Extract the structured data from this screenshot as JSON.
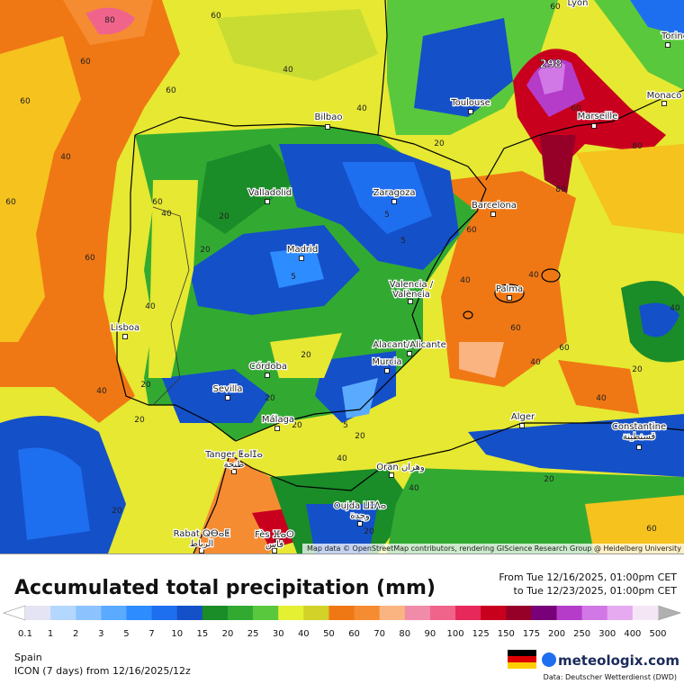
{
  "map": {
    "peak_label": "298",
    "attribution": "Map data © OpenStreetMap contributors, rendering GIScience Research Group @ Heidelberg University",
    "cities": [
      [
        "Lyon"
      ],
      [
        "Torino"
      ],
      [
        "Monaco"
      ],
      [
        "Marseille"
      ],
      [
        "Toulouse"
      ],
      [
        "Bilbao"
      ],
      [
        "Valladolid"
      ],
      [
        "Zaragoza"
      ],
      [
        "Barcelona"
      ],
      [
        "Madrid"
      ],
      [
        "Valencia /",
        "València"
      ],
      [
        "Palma"
      ],
      [
        "Lisboa"
      ],
      [
        "Córdoba"
      ],
      [
        "Sevilla"
      ],
      [
        "Alacant/Alicante"
      ],
      [
        "Murcia"
      ],
      [
        "Málaga"
      ],
      [
        "Alger"
      ],
      [
        "Constantine",
        "قسنطينة"
      ],
      [
        "Tanger ⵟⴰⵏⵊⴰ",
        "طنجة"
      ],
      [
        "Oran وهران"
      ],
      [
        "Oujda ⵡⵊⴷⴰ",
        "وجدة"
      ],
      [
        "Rabat ⵕⴱⴰⵟ",
        "الرباط"
      ],
      [
        "Fès ⴼⴰⵙ",
        "فاس"
      ]
    ],
    "contour_labels": [
      "80",
      "60",
      "60",
      "60",
      "40",
      "60",
      "60",
      "40",
      "40",
      "20",
      "20",
      "20",
      "20",
      "40",
      "60",
      "40",
      "20",
      "5",
      "5",
      "5",
      "20",
      "5",
      "20",
      "40",
      "40",
      "60",
      "40",
      "60",
      "60",
      "40",
      "20",
      "80",
      "60",
      "60",
      "80",
      "40",
      "40",
      "60",
      "20",
      "40",
      "20",
      "20",
      "60",
      "40",
      "20",
      "60",
      "20"
    ]
  },
  "legend": {
    "title": "Accumulated total precipitation (mm)",
    "period_from": "From Tue 12/16/2025, 01:00pm CET",
    "period_to": "to Tue 12/23/2025, 01:00pm CET",
    "scale_labels": [
      "0.1",
      "1",
      "2",
      "3",
      "5",
      "7",
      "10",
      "15",
      "20",
      "25",
      "30",
      "40",
      "50",
      "60",
      "70",
      "80",
      "90",
      "100",
      "125",
      "150",
      "175",
      "200",
      "250",
      "300",
      "400",
      "500"
    ],
    "scale_colors": [
      "#e4e4f4",
      "#b4d7ff",
      "#8cc3ff",
      "#5aaaff",
      "#2d8cff",
      "#1e6ef0",
      "#1450c8",
      "#1a8c28",
      "#32aa32",
      "#5ac83c",
      "#e6f032",
      "#d2d228",
      "#f07814",
      "#f58c32",
      "#fab482",
      "#f08caa",
      "#f0648c",
      "#e6285a",
      "#c8001e",
      "#960028",
      "#780078",
      "#b43cc8",
      "#d278e6",
      "#e6aaf0",
      "#f5e6f5"
    ]
  },
  "footer": {
    "region": "Spain",
    "model": "ICON (7 days)  from  12/16/2025/12z",
    "brand": "meteologix.com",
    "source": "Data: Deutscher Wetterdienst (DWD)"
  }
}
